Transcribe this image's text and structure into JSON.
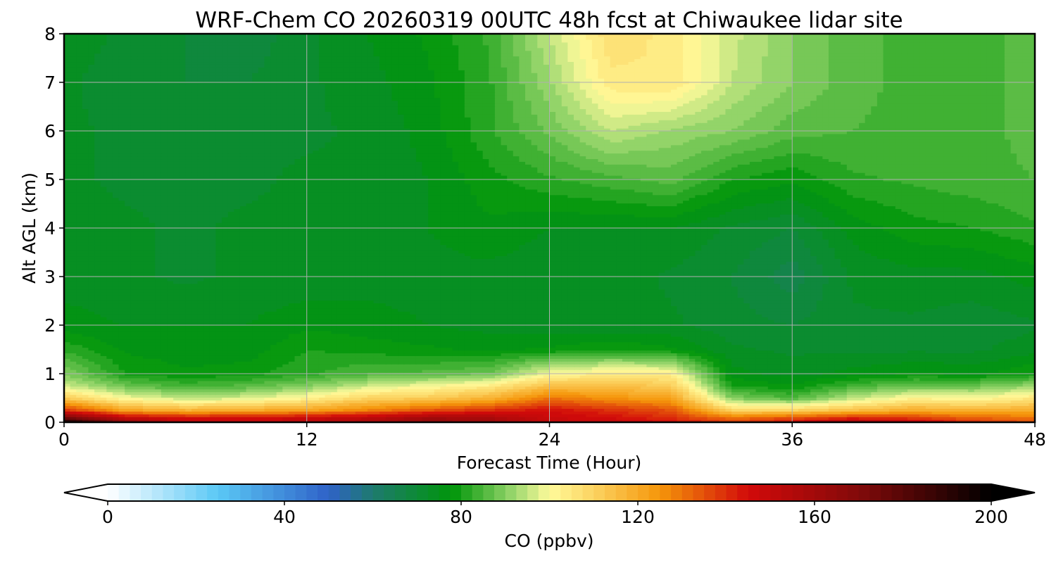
{
  "chart_data": {
    "type": "heatmap",
    "title": "WRF-Chem CO  20260319 00UTC 48h fcst at Chiwaukee lidar site",
    "xlabel": "Forecast Time (Hour)",
    "ylabel": "Alt AGL (km)",
    "xlim": [
      0,
      48
    ],
    "ylim": [
      0,
      8
    ],
    "xticks": [
      0,
      12,
      24,
      36,
      48
    ],
    "yticks": [
      0,
      1,
      2,
      3,
      4,
      5,
      6,
      7,
      8
    ],
    "grid": true,
    "x": [
      0,
      3,
      6,
      9,
      12,
      15,
      18,
      21,
      24,
      27,
      30,
      33,
      36,
      39,
      42,
      45,
      48
    ],
    "y": [
      0,
      0.1,
      0.25,
      0.5,
      0.75,
      1,
      1.5,
      2,
      3,
      4,
      5,
      6,
      7,
      8
    ],
    "z": [
      [
        200,
        168,
        150,
        150,
        152,
        158,
        165,
        162,
        150,
        150,
        145,
        138,
        145,
        160,
        150,
        140,
        135
      ],
      [
        175,
        150,
        145,
        145,
        148,
        152,
        160,
        158,
        148,
        145,
        140,
        130,
        135,
        140,
        138,
        132,
        130
      ],
      [
        140,
        122,
        118,
        120,
        122,
        128,
        135,
        140,
        145,
        140,
        135,
        110,
        110,
        115,
        120,
        118,
        120
      ],
      [
        112,
        100,
        95,
        97,
        102,
        110,
        112,
        118,
        130,
        125,
        122,
        90,
        85,
        95,
        102,
        100,
        105
      ],
      [
        96,
        88,
        84,
        86,
        90,
        96,
        100,
        104,
        115,
        115,
        112,
        80,
        78,
        84,
        88,
        88,
        92
      ],
      [
        90,
        80,
        78,
        79,
        82,
        85,
        86,
        88,
        100,
        104,
        103,
        76,
        74,
        76,
        78,
        77,
        80
      ],
      [
        82,
        77,
        76,
        76,
        80,
        79,
        78,
        77,
        78,
        80,
        78,
        73,
        72,
        72,
        72,
        72,
        74
      ],
      [
        76,
        75,
        75,
        75,
        77,
        76,
        75,
        74,
        73,
        73,
        73,
        71,
        70,
        72,
        72,
        71,
        72
      ],
      [
        74,
        73,
        72,
        73,
        73,
        74,
        74,
        74,
        73,
        74,
        72,
        70,
        66,
        73,
        74,
        74,
        76
      ],
      [
        74,
        73,
        72,
        73,
        73,
        74,
        75,
        77,
        75,
        75,
        75,
        72,
        70,
        76,
        79,
        80,
        82
      ],
      [
        73,
        72,
        72,
        72,
        73,
        73,
        75,
        79,
        82,
        84,
        86,
        80,
        78,
        82,
        83,
        84,
        85
      ],
      [
        73,
        72,
        72,
        72,
        72,
        73,
        76,
        82,
        88,
        95,
        92,
        90,
        86,
        85,
        84,
        84,
        86
      ],
      [
        73,
        71,
        70,
        70,
        72,
        74,
        77,
        82,
        92,
        104,
        105,
        95,
        90,
        86,
        84,
        84,
        86
      ],
      [
        74,
        72,
        70,
        68,
        72,
        75,
        78,
        83,
        95,
        107,
        104,
        96,
        90,
        86,
        84,
        84,
        86
      ]
    ],
    "colorbar": {
      "label": "CO  (ppbv)",
      "min": 0,
      "max": 200,
      "ticks": [
        0,
        40,
        80,
        120,
        160,
        200
      ],
      "extend": "both",
      "stops": [
        {
          "v": 0,
          "c": "#ffffff"
        },
        {
          "v": 25,
          "c": "#5ac8f5"
        },
        {
          "v": 50,
          "c": "#2f62c8"
        },
        {
          "v": 60,
          "c": "#1e7a6e"
        },
        {
          "v": 78,
          "c": "#00960a"
        },
        {
          "v": 92,
          "c": "#9bd76e"
        },
        {
          "v": 100,
          "c": "#fffb9b"
        },
        {
          "v": 125,
          "c": "#f5960a"
        },
        {
          "v": 145,
          "c": "#d20a0a"
        },
        {
          "v": 170,
          "c": "#820a0a"
        },
        {
          "v": 200,
          "c": "#000000"
        }
      ]
    }
  }
}
